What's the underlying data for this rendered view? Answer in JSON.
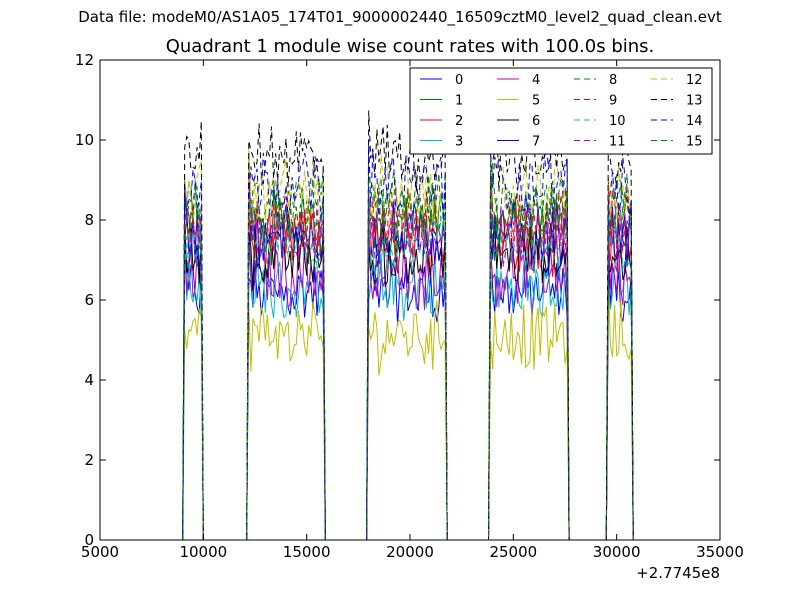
{
  "figure": {
    "suptitle": "Data file: modeM0/AS1A05_174T01_9000002440_16509cztM0_level2_quad_clean.evt",
    "title": "Quadrant 1 module wise count rates with 100.0s bins.",
    "offset_label": "+2.7745e8"
  },
  "chart_data": {
    "type": "line",
    "title": "Quadrant 1 module wise count rates with 100.0s bins.",
    "xlabel": "",
    "ylabel": "",
    "x_offset": 277450000,
    "xlim": [
      5000,
      35000
    ],
    "ylim": [
      0,
      12
    ],
    "xticks": [
      5000,
      10000,
      15000,
      20000,
      25000,
      30000,
      35000
    ],
    "yticks": [
      0,
      2,
      4,
      6,
      8,
      10,
      12
    ],
    "grid": false,
    "legend_position": "top-right",
    "legend_columns": 4,
    "segments": [
      {
        "start": 9100,
        "end": 9900
      },
      {
        "start": 12200,
        "end": 15800
      },
      {
        "start": 18000,
        "end": 21700
      },
      {
        "start": 23900,
        "end": 27600
      },
      {
        "start": 29600,
        "end": 30700
      }
    ],
    "gap_level": 0,
    "series": [
      {
        "name": "0",
        "color": "#0000ff",
        "dash": "solid",
        "mean": 6.2
      },
      {
        "name": "1",
        "color": "#008000",
        "dash": "solid",
        "mean": 7.8
      },
      {
        "name": "2",
        "color": "#ff0000",
        "dash": "solid",
        "mean": 7.5
      },
      {
        "name": "3",
        "color": "#00bfbf",
        "dash": "solid",
        "mean": 6.3
      },
      {
        "name": "4",
        "color": "#bf00bf",
        "dash": "solid",
        "mean": 6.7
      },
      {
        "name": "5",
        "color": "#bfbf00",
        "dash": "solid",
        "mean": 5.1
      },
      {
        "name": "6",
        "color": "#000000",
        "dash": "solid",
        "mean": 7.1
      },
      {
        "name": "7",
        "color": "#0000ff",
        "dash": "solid",
        "mean": 7.6
      },
      {
        "name": "8",
        "color": "#008000",
        "dash": "dashed",
        "mean": 8.4
      },
      {
        "name": "9",
        "color": "#ff0000",
        "dash": "dashed",
        "mean": 7.9
      },
      {
        "name": "10",
        "color": "#00bfbf",
        "dash": "dashed",
        "mean": 7.4
      },
      {
        "name": "11",
        "color": "#bf00bf",
        "dash": "dashed",
        "mean": 7.7
      },
      {
        "name": "12",
        "color": "#bfbf00",
        "dash": "dashed",
        "mean": 8.7
      },
      {
        "name": "13",
        "color": "#000000",
        "dash": "dashed",
        "mean": 9.6
      },
      {
        "name": "14",
        "color": "#0000ff",
        "dash": "dashed",
        "mean": 8.9
      },
      {
        "name": "15",
        "color": "#008000",
        "dash": "dashed",
        "mean": 8.2
      }
    ]
  }
}
